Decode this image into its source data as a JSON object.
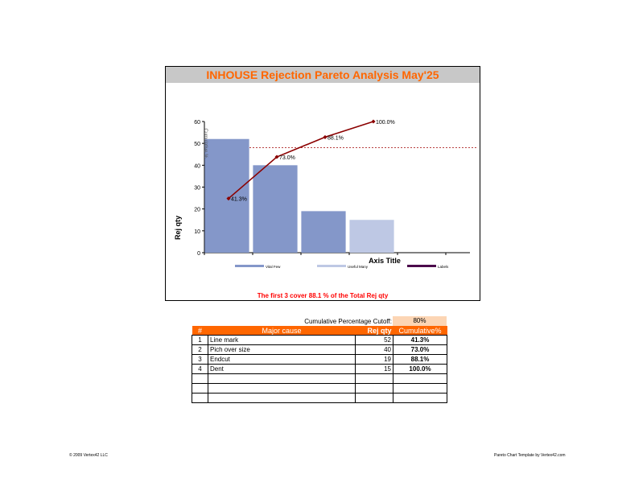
{
  "chart_data": {
    "type": "bar",
    "title": "INHOUSE Rejection Pareto Analysis May'25",
    "ylabel": "Rej qty",
    "y2label": "Cumulative %",
    "xlabel": "Axis Title",
    "ylim": [
      0,
      60
    ],
    "yticks": [
      "0",
      "10",
      "20",
      "30",
      "40",
      "50",
      "60"
    ],
    "categories": [
      "Line mark",
      "Pich over size",
      "Endcut",
      "Dent"
    ],
    "values": [
      52,
      40,
      19,
      15
    ],
    "bar_colors": [
      "#8497c9",
      "#8497c9",
      "#8497c9",
      "#bec8e4"
    ],
    "cumulative": [
      41.3,
      73.0,
      88.1,
      100.0
    ],
    "cumulative_labels": [
      "41.3%",
      "73.0%",
      "88.1%",
      "100.0%"
    ],
    "cutoff_percent": 80,
    "legend": [
      {
        "name": "Vital Few",
        "color": "#8497c9"
      },
      {
        "name": "Useful Many",
        "color": "#bec8e4"
      },
      {
        "name": "Labels",
        "color": "#4b0b4b"
      }
    ],
    "line_color": "#8b0000",
    "grid": false
  },
  "footnote": "The first 3  cover 88.1 % of the Total Rej qty",
  "cutoff": {
    "label": "Cumulative Percentage Cutoff:",
    "value": "80%"
  },
  "table": {
    "headers": [
      "#",
      "Major cause",
      "Rej qty",
      "Cumulative%"
    ],
    "rows": [
      {
        "num": "1",
        "cause": "Line mark",
        "qty": "52",
        "pct": "41.3%"
      },
      {
        "num": "2",
        "cause": "Pich over size",
        "qty": "40",
        "pct": "73.0%"
      },
      {
        "num": "3",
        "cause": "Endcut",
        "qty": "19",
        "pct": "88.1%"
      },
      {
        "num": "4",
        "cause": "Dent",
        "qty": "15",
        "pct": "100.0%"
      },
      {
        "num": "",
        "cause": "",
        "qty": "",
        "pct": ""
      },
      {
        "num": "",
        "cause": "",
        "qty": "",
        "pct": ""
      },
      {
        "num": "",
        "cause": "",
        "qty": "",
        "pct": ""
      }
    ]
  },
  "footer": {
    "left": "© 2009 Vertex42 LLC",
    "right": "Pareto Chart Template by Vertex42.com"
  }
}
